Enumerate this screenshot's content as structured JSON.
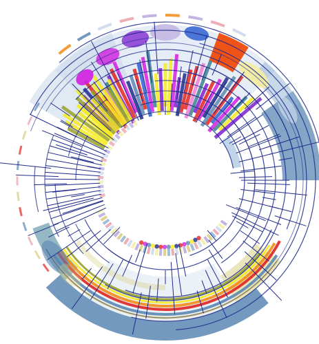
{
  "palette": {
    "navy": "#1f2a8c",
    "steel": "#5b87b3",
    "steel_light": "#8fb1d3",
    "pale_blue": "#c9d7ea",
    "yellow": "#f4ea21",
    "yellow_pale": "#f3eda0",
    "purple": "#7b1fd0",
    "magenta": "#d21ee0",
    "pink": "#f07bd8",
    "red": "#e0231f",
    "orange": "#f28b16",
    "orange_red": "#f04b0b",
    "teal": "#3c7f93",
    "olive": "#9aa12c",
    "khaki": "#d8cc7a",
    "lavender": "#b9a8de",
    "rose": "#e7a1a8",
    "gray": "#b8bec8",
    "blue": "#2f5fd1"
  }
}
